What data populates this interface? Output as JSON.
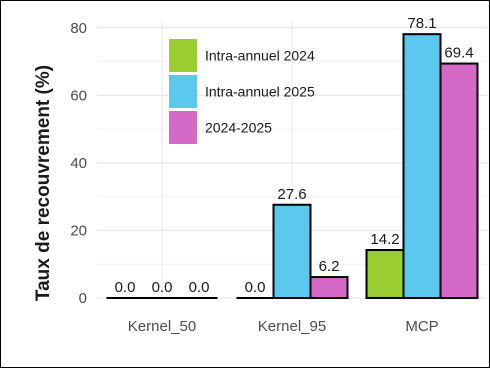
{
  "chart_data": {
    "type": "bar",
    "title": "",
    "xlabel": "",
    "ylabel": "Taux de recouvrement (%)",
    "categories": [
      "Kernel_50",
      "Kernel_95",
      "MCP"
    ],
    "ylim": [
      0,
      82
    ],
    "yticks": [
      0,
      20,
      40,
      60,
      80
    ],
    "grid": true,
    "legend_position": "top-left",
    "series": [
      {
        "name": "Intra-annuel 2024",
        "color": "#9acd32",
        "values": [
          0.0,
          0.0,
          14.2
        ],
        "labels": [
          "0.0",
          "0.0",
          "14.2"
        ]
      },
      {
        "name": "Intra-annuel 2025",
        "color": "#5bc8f0",
        "values": [
          0.0,
          27.6,
          78.1
        ],
        "labels": [
          "0.0",
          "27.6",
          "78.1"
        ]
      },
      {
        "name": "2024-2025",
        "color": "#d469c8",
        "values": [
          0.0,
          6.2,
          69.4
        ],
        "labels": [
          "0.0",
          "6.2",
          "69.4"
        ]
      }
    ]
  }
}
